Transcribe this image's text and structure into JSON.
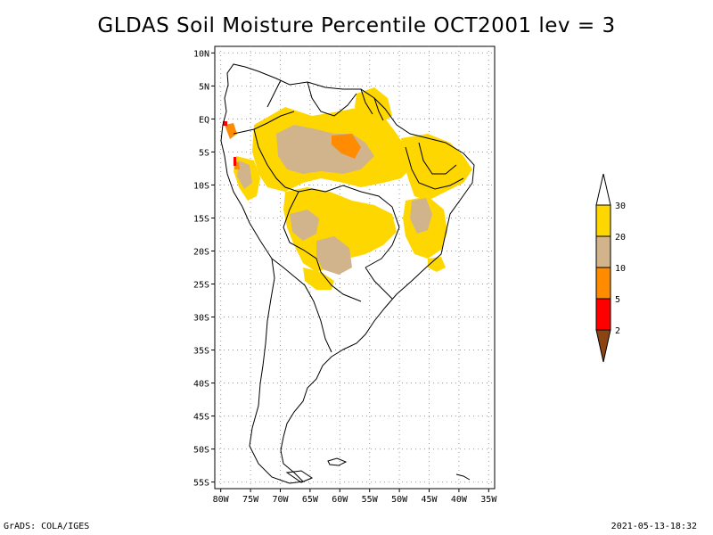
{
  "title": "GLDAS Soil Moisture Percentile OCT2001 lev = 3",
  "footer_left": "GrADS: COLA/IGES",
  "footer_right": "2021-05-13-18:32",
  "map": {
    "lat_labels": [
      "10N",
      "5N",
      "EQ",
      "5S",
      "10S",
      "15S",
      "20S",
      "25S",
      "30S",
      "35S",
      "40S",
      "45S",
      "50S",
      "55S"
    ],
    "lon_labels": [
      "80W",
      "75W",
      "70W",
      "65W",
      "60W",
      "55W",
      "50W",
      "45W",
      "40W",
      "35W"
    ],
    "lon_range": [
      -81,
      -34
    ],
    "lat_range": [
      -56,
      11
    ],
    "colors": {
      "below_2": "#8B4513",
      "2_5": "#FF0000",
      "5_10": "#FF8C00",
      "10_20": "#D2B48C",
      "20_30": "#FFD700",
      "above_30": "#FFFFFF"
    }
  },
  "colorbar": {
    "labels": [
      "2",
      "5",
      "10",
      "20",
      "30"
    ]
  }
}
